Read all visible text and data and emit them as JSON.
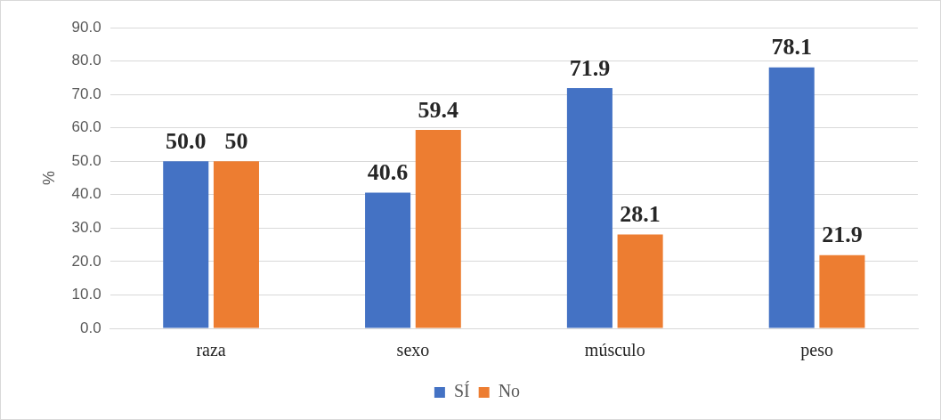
{
  "chart_data": {
    "type": "bar",
    "ylabel": "%",
    "categories": [
      "raza",
      "sexo",
      "músculo",
      "peso"
    ],
    "series": [
      {
        "name": "SÍ",
        "color": "#4472c4",
        "values": [
          50.0,
          40.6,
          71.9,
          78.1
        ],
        "value_labels": [
          "50.0",
          "40.6",
          "71.9",
          "78.1"
        ]
      },
      {
        "name": "No",
        "color": "#ed7d31",
        "values": [
          50,
          59.4,
          28.1,
          21.9
        ],
        "value_labels": [
          "50",
          "59.4",
          "28.1",
          "21.9"
        ]
      }
    ],
    "ylim": [
      0,
      90
    ],
    "yticks": [
      {
        "value": 0,
        "label": "0.0"
      },
      {
        "value": 10,
        "label": "10.0"
      },
      {
        "value": 20,
        "label": "20.0"
      },
      {
        "value": 30,
        "label": "30.0"
      },
      {
        "value": 40,
        "label": "40.0"
      },
      {
        "value": 50,
        "label": "50.0"
      },
      {
        "value": 60,
        "label": "60.0"
      },
      {
        "value": 70,
        "label": "70.0"
      },
      {
        "value": 80,
        "label": "80.0"
      },
      {
        "value": 90,
        "label": "90.0"
      }
    ],
    "grid": "y",
    "legend": "bottom"
  }
}
